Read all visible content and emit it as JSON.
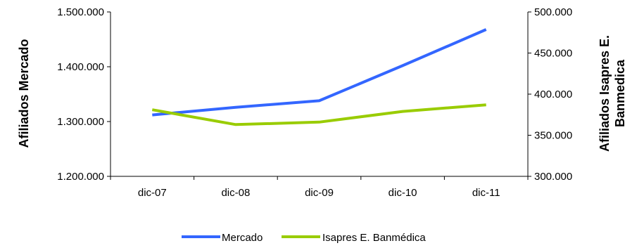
{
  "chart_data": {
    "type": "line",
    "categories": [
      "dic-07",
      "dic-08",
      "dic-09",
      "dic-10",
      "dic-11"
    ],
    "ylabel_left": "Afiliados Mercado",
    "ylabel_right": [
      "Afiliados Isapres E.",
      "Banmedica"
    ],
    "y_left": {
      "lim": [
        1200000,
        1500000
      ],
      "ticks": [
        1200000,
        1300000,
        1400000,
        1500000
      ],
      "tick_labels": [
        "1.200.000",
        "1.300.000",
        "1.400.000",
        "1.500.000"
      ]
    },
    "y_right": {
      "lim": [
        300000,
        500000
      ],
      "ticks": [
        300000,
        350000,
        400000,
        450000,
        500000
      ],
      "tick_labels": [
        "300.000",
        "350.000",
        "400.000",
        "450.000",
        "500.000"
      ]
    },
    "series": [
      {
        "name": "Mercado",
        "axis": "left",
        "color": "#3366ff",
        "values": [
          1312000,
          1326000,
          1338000,
          1402000,
          1468000
        ]
      },
      {
        "name": "Isapres E. Banmédica",
        "axis": "right",
        "color": "#99cc00",
        "values": [
          381000,
          363000,
          366000,
          379000,
          387000
        ]
      }
    ],
    "legend_position": "bottom",
    "grid": false
  }
}
